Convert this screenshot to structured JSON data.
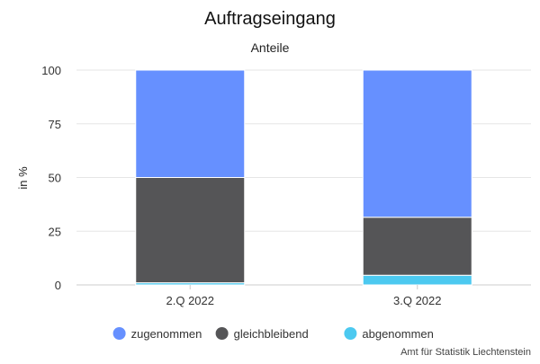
{
  "chart_data": {
    "type": "bar",
    "stacked": true,
    "title": "Auftragseingang",
    "subtitle": "Anteile",
    "ylabel": "in %",
    "xlabel": "",
    "ylim": [
      0,
      100
    ],
    "yticks": [
      0,
      25,
      50,
      75,
      100
    ],
    "categories": [
      "2.Q 2022",
      "3.Q 2022"
    ],
    "series": [
      {
        "name": "abgenommen",
        "color": "#4cc9f0",
        "values": [
          1,
          4.5
        ]
      },
      {
        "name": "gleichbleibend",
        "color": "#555557",
        "values": [
          49,
          27
        ]
      },
      {
        "name": "zugenommen",
        "color": "#6690ff",
        "values": [
          50,
          68.5
        ]
      }
    ],
    "legend": {
      "position": "bottom",
      "order": [
        "zugenommen",
        "gleichbleibend",
        "abgenommen"
      ]
    },
    "grid": true,
    "source": "Amt für Statistik Liechtenstein"
  }
}
